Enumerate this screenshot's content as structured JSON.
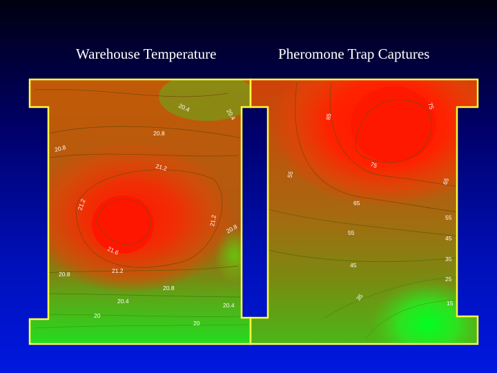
{
  "slide": {
    "left_title": "Warehouse Temperature",
    "right_title": "Pheromone Trap Captures"
  },
  "colors": {
    "hot": "#ff1a00",
    "mid": "#b86a10",
    "cool": "#20e020",
    "outline": "#ffff40"
  },
  "temperature_map": {
    "contour_labels": [
      "20.4",
      "20.4",
      "20.8",
      "20.8",
      "21.2",
      "21.2",
      "21.2",
      "20.8",
      "21.6",
      "21.2",
      "20.8",
      "20.8",
      "20.4",
      "20.4",
      "20",
      "20"
    ]
  },
  "trap_map": {
    "contour_labels": [
      "75",
      "85",
      "55",
      "75",
      "65",
      "65",
      "55",
      "55",
      "45",
      "45",
      "35",
      "25",
      "35",
      "15"
    ]
  }
}
